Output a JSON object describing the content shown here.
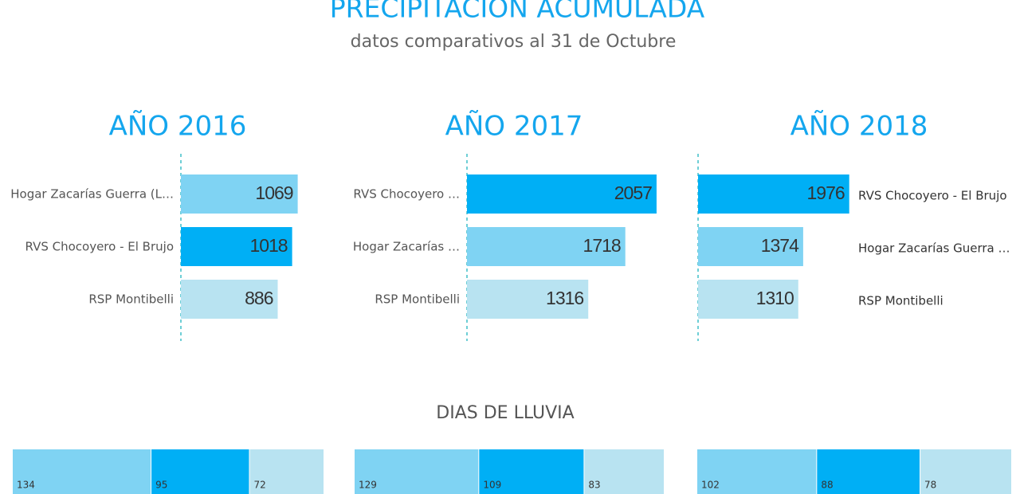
{
  "header": {
    "title": "PRECIPITACIÓN ACUMULADA",
    "subtitle": "datos comparativos al 31 de Octubre"
  },
  "section_title": "DIAS DE LLUVIA",
  "chart_data": [
    {
      "type": "hbar",
      "title": "AÑO 2016",
      "categories": [
        "Hogar Zacarías Guerra (L…",
        "RVS Chocoyero - El Brujo",
        "RSP Montibelli"
      ],
      "values": [
        1069,
        1018,
        886
      ],
      "colors": [
        "#7fd3f3",
        "#00aff5",
        "#b8e3f1"
      ],
      "xlim": [
        0,
        1750
      ]
    },
    {
      "type": "hbar",
      "title": "AÑO 2017",
      "categories": [
        "RVS Chocoyero …",
        "Hogar Zacarías …",
        "RSP Montibelli"
      ],
      "values": [
        2057,
        1718,
        1316
      ],
      "colors": [
        "#00aff5",
        "#7fd3f3",
        "#b8e3f1"
      ],
      "xlim": [
        0,
        2075
      ]
    },
    {
      "type": "hbar",
      "title": "AÑO 2018",
      "categories": [
        "RVS Chocoyero - El Brujo",
        "Hogar Zacarías Guerra …",
        "RSP Montibelli"
      ],
      "values": [
        1976,
        1374,
        1310
      ],
      "colors": [
        "#00aff5",
        "#7fd3f3",
        "#b8e3f1"
      ],
      "xlim": [
        0,
        2500
      ]
    },
    {
      "type": "stacked",
      "series": [
        {
          "color": "#7fd3f3",
          "values": [
            134
          ]
        },
        {
          "color": "#00aff5",
          "values": [
            95
          ]
        },
        {
          "color": "#b8e3f1",
          "values": [
            72
          ]
        }
      ]
    },
    {
      "type": "stacked",
      "series": [
        {
          "color": "#7fd3f3",
          "values": [
            129
          ]
        },
        {
          "color": "#00aff5",
          "values": [
            109
          ]
        },
        {
          "color": "#b8e3f1",
          "values": [
            83
          ]
        }
      ]
    },
    {
      "type": "stacked",
      "series": [
        {
          "color": "#7fd3f3",
          "values": [
            102
          ]
        },
        {
          "color": "#00aff5",
          "values": [
            88
          ]
        },
        {
          "color": "#b8e3f1",
          "values": [
            78
          ]
        }
      ]
    }
  ]
}
